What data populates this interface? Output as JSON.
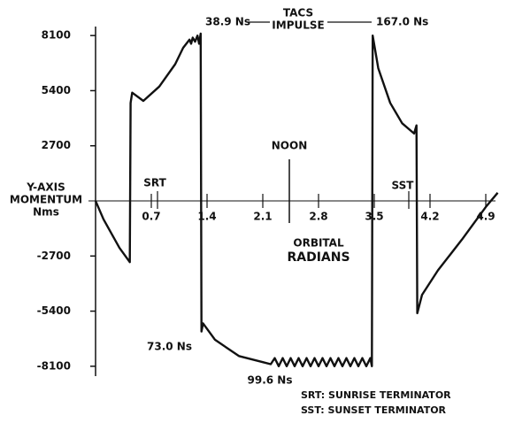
{
  "chart_data": {
    "type": "line",
    "y_label": [
      "Y-AXIS",
      "MOMENTUM",
      "Nms"
    ],
    "x_label": [
      "ORBITAL",
      "RADIANS"
    ],
    "annotations": [
      "38.9 Ns",
      "TACS",
      "IMPULSE",
      "167.0 Ns",
      "NOON",
      "SRT",
      "SST",
      "73.0 Ns",
      "99.6 Ns"
    ],
    "notes": [
      "SRT: SUNRISE TERMINATOR",
      "SST: SUNSET TERMINATOR"
    ],
    "xlim": [
      0,
      5.1
    ],
    "ylim": [
      -9000,
      9000
    ],
    "xticks": [
      0.7,
      1.4,
      2.1,
      2.8,
      3.5,
      4.2,
      4.9
    ],
    "yticks": [
      8100,
      5400,
      2700,
      -2700,
      -5400,
      -8100
    ],
    "series": [
      {
        "name": "Y-axis momentum",
        "color": "#111111",
        "x": [
          0,
          0.1,
          0.2,
          0.3,
          0.43,
          0.44,
          0.46,
          0.6,
          0.8,
          1.0,
          1.1,
          1.18,
          1.2,
          1.22,
          1.25,
          1.28,
          1.3,
          1.32,
          1.33,
          1.35,
          1.5,
          1.8,
          2.1,
          2.2,
          2.25,
          2.3,
          2.35,
          2.4,
          2.45,
          2.5,
          2.55,
          2.6,
          2.65,
          2.7,
          2.75,
          2.8,
          2.85,
          2.9,
          2.95,
          3.0,
          3.05,
          3.1,
          3.15,
          3.2,
          3.25,
          3.3,
          3.35,
          3.4,
          3.45,
          3.47,
          3.48,
          3.55,
          3.7,
          3.85,
          4.0,
          4.03,
          4.04,
          4.1,
          4.3,
          4.6,
          4.9,
          5.05
        ],
        "values": [
          0,
          -900,
          -1600,
          -2300,
          -3000,
          4800,
          5300,
          4900,
          5600,
          6700,
          7500,
          7900,
          7700,
          8000,
          7800,
          8100,
          7700,
          8200,
          -6400,
          -6000,
          -6800,
          -7600,
          -7900,
          -8000,
          -7700,
          -8100,
          -7700,
          -8100,
          -7700,
          -8100,
          -7700,
          -8100,
          -7700,
          -8100,
          -7700,
          -8100,
          -7700,
          -8100,
          -7700,
          -8100,
          -7700,
          -8100,
          -7700,
          -8100,
          -7700,
          -8100,
          -7700,
          -8100,
          -7700,
          -8100,
          8100,
          6500,
          4800,
          3800,
          3300,
          3700,
          -5500,
          -4600,
          -3400,
          -1900,
          -300,
          400
        ]
      }
    ]
  }
}
